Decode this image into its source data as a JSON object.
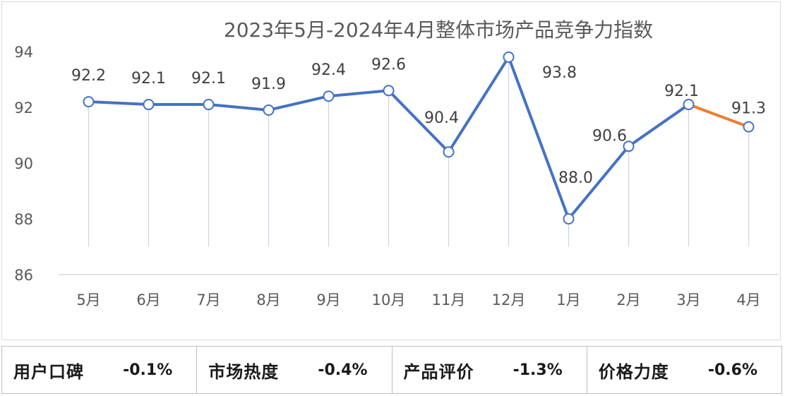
{
  "chart_data": {
    "type": "line",
    "title": "2023年5月-2024年4月整体市场产品竞争力指数",
    "categories": [
      "5月",
      "6月",
      "7月",
      "8月",
      "9月",
      "10月",
      "11月",
      "12月",
      "1月",
      "2月",
      "3月",
      "4月"
    ],
    "series": [
      {
        "values": [
          92.2,
          92.1,
          92.1,
          91.9,
          92.4,
          92.6,
          90.4,
          93.8,
          88.0,
          90.6,
          92.1,
          91.3
        ]
      }
    ],
    "data_labels": [
      "92.2",
      "92.1",
      "92.1",
      "91.9",
      "92.4",
      "92.6",
      "90.4",
      "93.8",
      "88.0",
      "90.6",
      "92.1",
      "91.3"
    ],
    "ylim": [
      86,
      94
    ],
    "yticks": [
      "86",
      "88",
      "90",
      "92",
      "94"
    ],
    "colors": {
      "main_line": "#4472c4",
      "last_segment": "#ed7d31",
      "drop_lines": "#c9d4ea",
      "axis": "#d9d9d9"
    },
    "grid": false
  },
  "summary": [
    {
      "label": "用户口碑",
      "value": "-0.1%"
    },
    {
      "label": "市场热度",
      "value": "-0.4%"
    },
    {
      "label": "产品评价",
      "value": "-1.3%"
    },
    {
      "label": "价格力度",
      "value": "-0.6%"
    }
  ]
}
